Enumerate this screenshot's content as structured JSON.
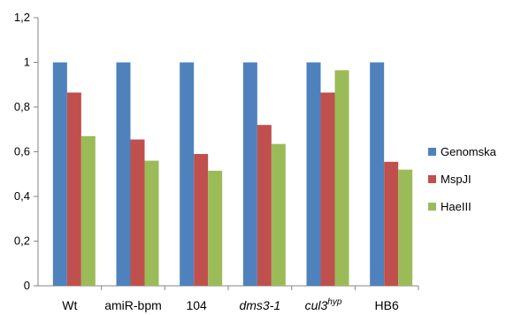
{
  "chart_data": {
    "type": "bar",
    "title": "",
    "xlabel": "",
    "ylabel": "",
    "ylim": [
      0,
      1.2
    ],
    "yticks": [
      "0",
      "0,2",
      "0,4",
      "0,6",
      "0,8",
      "1",
      "1,2"
    ],
    "categories": [
      {
        "label": "Wt",
        "italic": false,
        "sup": ""
      },
      {
        "label": "amiR-bpm",
        "italic": false,
        "sup": ""
      },
      {
        "label": "104",
        "italic": false,
        "sup": ""
      },
      {
        "label": "dms3-1",
        "italic": true,
        "sup": ""
      },
      {
        "label": "cul3",
        "italic": true,
        "sup": "hyp"
      },
      {
        "label": "HB6",
        "italic": false,
        "sup": ""
      }
    ],
    "series": [
      {
        "name": "Genomska",
        "color": "#4f81bd",
        "values": [
          1,
          1,
          1,
          1,
          1,
          1
        ]
      },
      {
        "name": "MspJI",
        "color": "#c0504d",
        "values": [
          0.865,
          0.655,
          0.59,
          0.72,
          0.865,
          0.555
        ]
      },
      {
        "name": "HaeIII",
        "color": "#9bbb59",
        "values": [
          0.67,
          0.56,
          0.515,
          0.635,
          0.965,
          0.52
        ]
      }
    ],
    "grid": false,
    "legend_position": "right"
  }
}
